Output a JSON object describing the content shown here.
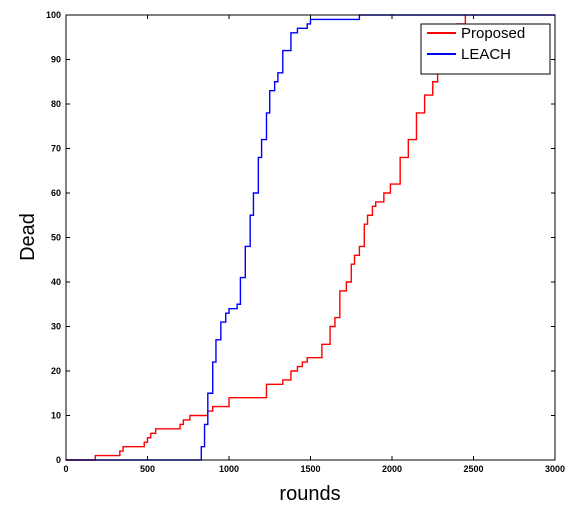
{
  "chart_data": {
    "type": "line",
    "xlabel": "rounds",
    "ylabel": "Dead",
    "xlim": [
      0,
      3000
    ],
    "ylim": [
      0,
      100
    ],
    "xticks": [
      0,
      500,
      1000,
      1500,
      2000,
      2500,
      3000
    ],
    "yticks": [
      0,
      10,
      20,
      30,
      40,
      50,
      60,
      70,
      80,
      90,
      100
    ],
    "grid": false,
    "legend_position": "top-right",
    "series": [
      {
        "name": "Proposed",
        "color": "#ff0000",
        "x": [
          0,
          180,
          300,
          330,
          350,
          450,
          480,
          500,
          520,
          550,
          670,
          700,
          720,
          760,
          800,
          870,
          900,
          1000,
          1100,
          1200,
          1230,
          1300,
          1330,
          1380,
          1420,
          1450,
          1480,
          1550,
          1570,
          1600,
          1620,
          1650,
          1680,
          1720,
          1750,
          1770,
          1800,
          1830,
          1850,
          1880,
          1900,
          1950,
          1990,
          2050,
          2100,
          2150,
          2200,
          2250,
          2280,
          2320,
          2350,
          2400,
          2450
        ],
        "y": [
          0,
          1,
          1,
          2,
          3,
          3,
          4,
          5,
          6,
          7,
          7,
          8,
          9,
          10,
          10,
          11,
          12,
          14,
          14,
          14,
          17,
          17,
          18,
          20,
          21,
          22,
          23,
          23,
          26,
          26,
          30,
          32,
          38,
          40,
          44,
          46,
          48,
          53,
          55,
          57,
          58,
          60,
          62,
          68,
          72,
          78,
          82,
          85,
          88,
          92,
          95,
          98,
          100
        ]
      },
      {
        "name": "LEACH",
        "color": "#0000ff",
        "x": [
          0,
          800,
          830,
          850,
          870,
          900,
          920,
          950,
          980,
          1000,
          1050,
          1070,
          1100,
          1130,
          1150,
          1180,
          1200,
          1230,
          1250,
          1280,
          1300,
          1330,
          1380,
          1420,
          1450,
          1480,
          1500,
          1600,
          1800,
          3000
        ],
        "y": [
          0,
          0,
          3,
          8,
          15,
          22,
          27,
          31,
          33,
          34,
          35,
          41,
          48,
          55,
          60,
          68,
          72,
          78,
          83,
          85,
          87,
          92,
          96,
          97,
          97,
          98,
          99,
          99,
          100,
          100
        ]
      }
    ]
  }
}
